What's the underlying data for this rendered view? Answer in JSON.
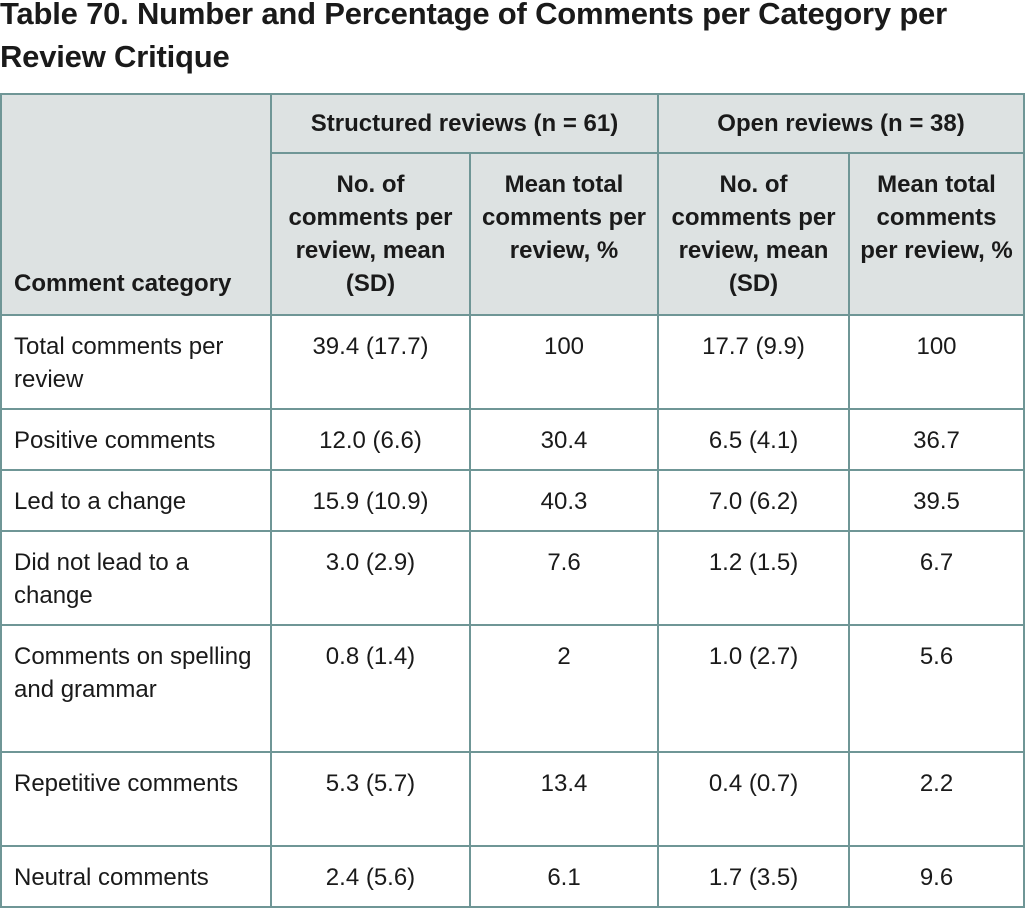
{
  "title": "Table 70. Number and Percentage of Comments per Category per Review Critique",
  "header": {
    "comment_category": "Comment category",
    "groups": [
      "Structured reviews (n = 61)",
      "Open reviews (n = 38)"
    ],
    "subcolumns": [
      "No. of comments per review, mean (SD)",
      "Mean total comments per review, %",
      "No. of comments per review, mean (SD)",
      "Mean total comments per review, %"
    ]
  },
  "rows": [
    {
      "category": "Total comments per review",
      "s_mean": "39.4 (17.7)",
      "s_pct": "100",
      "o_mean": "17.7 (9.9)",
      "o_pct": "100"
    },
    {
      "category": "Positive comments",
      "s_mean": "12.0 (6.6)",
      "s_pct": "30.4",
      "o_mean": "6.5 (4.1)",
      "o_pct": "36.7"
    },
    {
      "category": "Led to a change",
      "s_mean": "15.9 (10.9)",
      "s_pct": "40.3",
      "o_mean": "7.0 (6.2)",
      "o_pct": "39.5"
    },
    {
      "category": "Did not lead to a change",
      "s_mean": "3.0 (2.9)",
      "s_pct": "7.6",
      "o_mean": "1.2 (1.5)",
      "o_pct": "6.7"
    },
    {
      "category": "Comments on spelling and grammar",
      "s_mean": "0.8 (1.4)",
      "s_pct": "2",
      "o_mean": "1.0 (2.7)",
      "o_pct": "5.6"
    },
    {
      "category": "Repetitive comments",
      "s_mean": "5.3 (5.7)",
      "s_pct": "13.4",
      "o_mean": "0.4 (0.7)",
      "o_pct": "2.2"
    },
    {
      "category": "Neutral comments",
      "s_mean": "2.4 (5.6)",
      "s_pct": "6.1",
      "o_mean": "1.7 (3.5)",
      "o_pct": "9.6"
    }
  ],
  "colors": {
    "header_background": "#dde2e2",
    "border": "#6f9696",
    "text": "#1a1a1a"
  }
}
